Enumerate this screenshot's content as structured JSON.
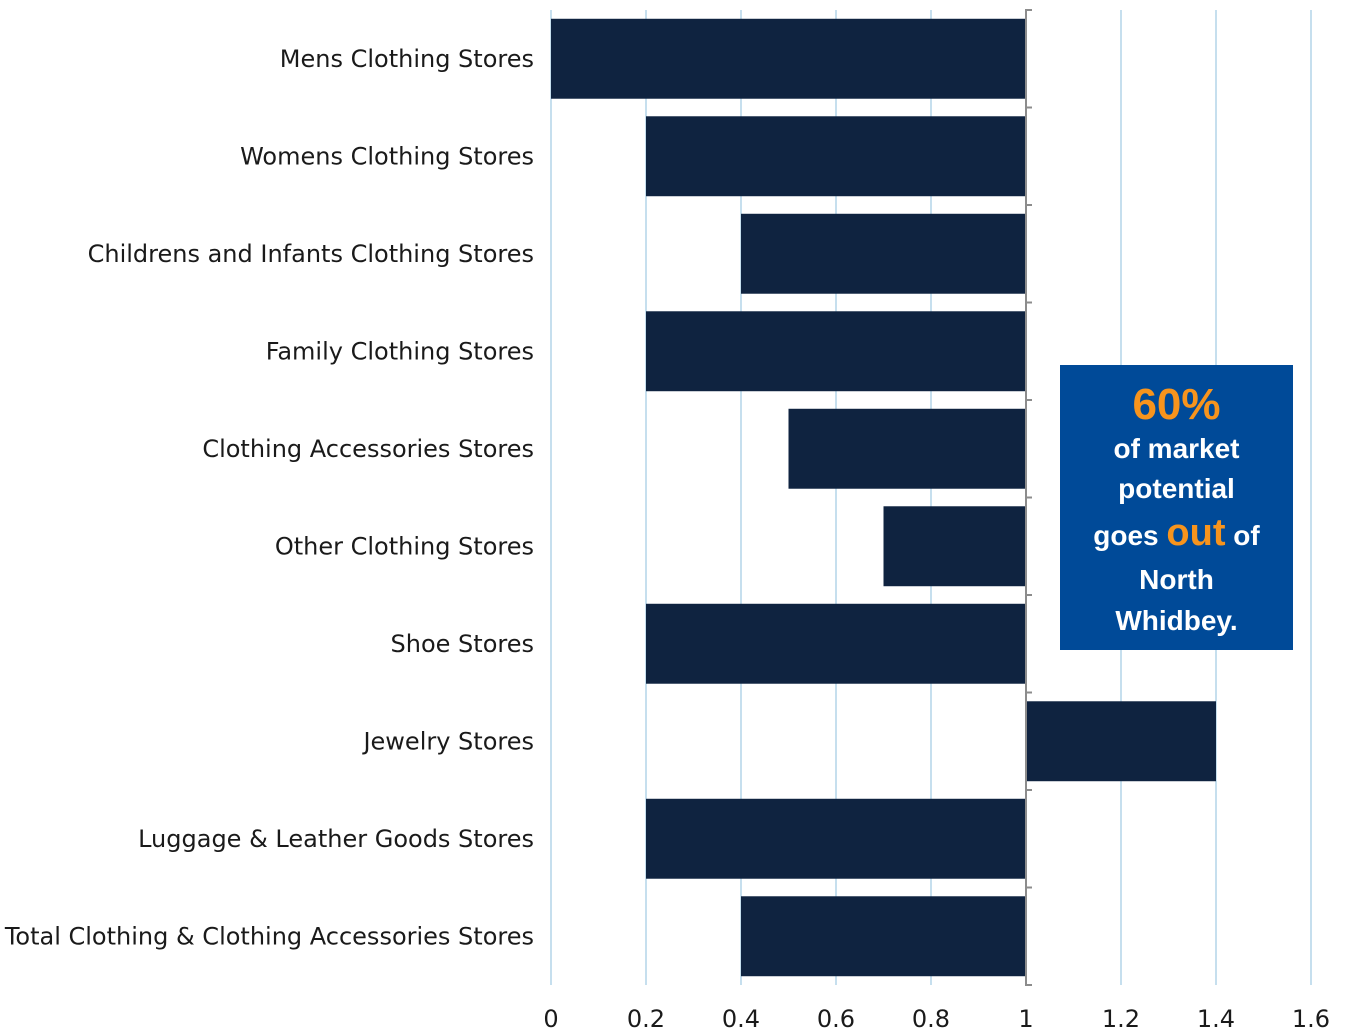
{
  "chart_data": {
    "type": "bar",
    "orientation": "horizontal",
    "categories": [
      "Mens Clothing Stores",
      "Womens Clothing Stores",
      "Childrens and Infants Clothing Stores",
      "Family Clothing Stores",
      "Clothing Accessories Stores",
      "Other Clothing Stores",
      "Shoe Stores",
      "Jewelry Stores",
      "Luggage & Leather Goods Stores",
      "Total Clothing & Clothing Accessories Stores"
    ],
    "values": [
      0.0,
      0.2,
      0.4,
      0.2,
      0.5,
      0.7,
      0.2,
      1.4,
      0.2,
      0.4
    ],
    "baseline": 1,
    "xlim": [
      0,
      1.6
    ],
    "xticks": [
      "0",
      "0.2",
      "0.4",
      "0.6",
      "0.8",
      "1",
      "1.2",
      "1.4",
      "1.6"
    ],
    "grid": "vertical",
    "title": "",
    "xlabel": "",
    "ylabel": "",
    "colors": {
      "bar": "#0f2340",
      "grid": "#c6dfee",
      "axis": "#8c8c8c"
    }
  },
  "callout": {
    "percent": "60%",
    "line1": "of market",
    "line2": "potential",
    "line3_pre": "goes",
    "line3_highlight": "out",
    "line3_post": "of",
    "line4": "North",
    "line5": "Whidbey.",
    "colors": {
      "background": "#004a98",
      "accent": "#f7941d"
    }
  }
}
